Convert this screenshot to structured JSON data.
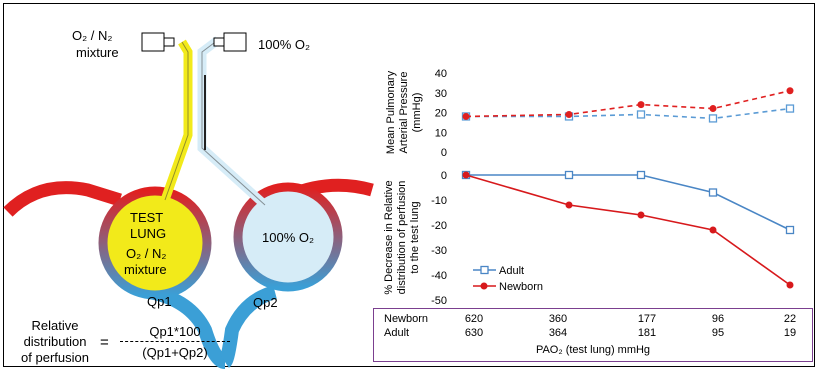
{
  "diagram": {
    "label_o2n2_mix": [
      "O₂ / N₂",
      "mixture"
    ],
    "label_100o2": "100% O₂",
    "test_lung": [
      "TEST",
      "LUNG",
      "O₂ / N₂",
      "mixture"
    ],
    "other_lung": "100% O₂",
    "qp1": "Qp1",
    "qp2": "Qp2",
    "colors": {
      "yellow": "#f2ea1a",
      "light_blue": "#d6ecf7",
      "blue": "#3b9fd6",
      "red": "#e02020",
      "purple": "#7b3f8f"
    }
  },
  "formula": {
    "label": [
      "Relative",
      "distribution",
      "of perfusion"
    ],
    "equals": "=",
    "numerator": "Qp1*100",
    "denominator": "(Qp1+Qp2)"
  },
  "chart_data": [
    {
      "type": "line",
      "ylabel": "Mean Pulmonary Arterial Pressure (mmHg)",
      "ylim": [
        0,
        40
      ],
      "yticks": [
        "0",
        "10",
        "20",
        "30",
        "40"
      ],
      "x": [
        1,
        2,
        3,
        4,
        5
      ],
      "series": [
        {
          "name": "Adult",
          "values": [
            18,
            18,
            19,
            17,
            22
          ],
          "color": "#5b9bd5",
          "style": "dashed",
          "marker": "open-square"
        },
        {
          "name": "Newborn",
          "values": [
            18,
            19,
            24,
            22,
            31
          ],
          "color": "#e02020",
          "style": "dashed",
          "marker": "filled-circle"
        }
      ]
    },
    {
      "type": "line",
      "ylabel": "% Decrease in Relative distribution of perfusion to the test lung",
      "ylim": [
        -50,
        0
      ],
      "yticks": [
        "0",
        "-10",
        "-20",
        "-30",
        "-40",
        "-50"
      ],
      "x": [
        1,
        2,
        3,
        4,
        5
      ],
      "legend_position": "bottom-left",
      "series": [
        {
          "name": "Adult",
          "values": [
            0,
            0,
            0,
            -7,
            -22
          ],
          "color": "#4a86c5",
          "style": "solid",
          "marker": "open-square"
        },
        {
          "name": "Newborn",
          "values": [
            0,
            -12,
            -16,
            -22,
            -44
          ],
          "color": "#d7191c",
          "style": "solid",
          "marker": "filled-circle"
        }
      ]
    }
  ],
  "table": {
    "rows": [
      {
        "name": "Newborn",
        "values": [
          "620",
          "360",
          "177",
          "96",
          "22"
        ]
      },
      {
        "name": "Adult",
        "values": [
          "630",
          "364",
          "181",
          "95",
          "19"
        ]
      }
    ],
    "footer": "PAO₂ (test lung) mmHg"
  }
}
